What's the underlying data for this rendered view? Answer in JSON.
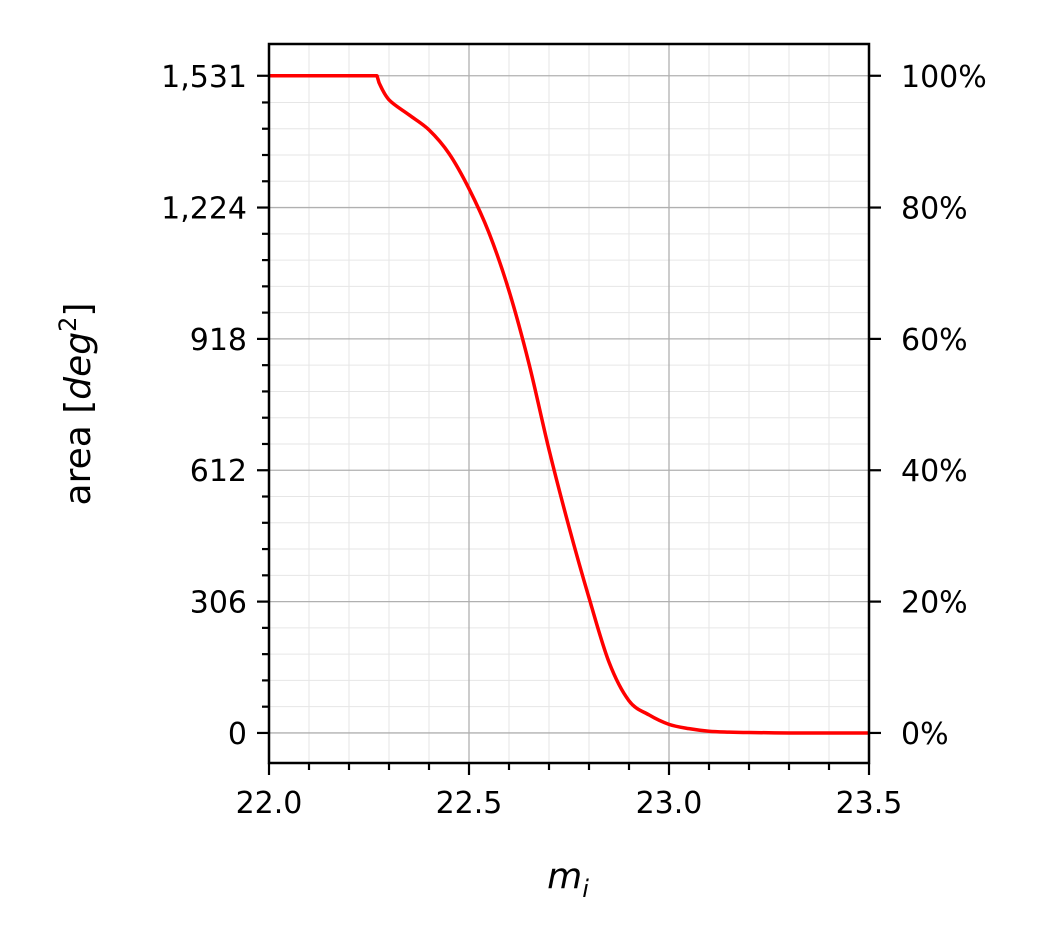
{
  "chart_data": {
    "type": "line",
    "title": "",
    "xlabel": "m",
    "xlabel_subscript": "i",
    "ylabel_prefix": "area [",
    "ylabel_italic": "deg",
    "ylabel_superscript": "2",
    "ylabel_suffix": "]",
    "xlim": [
      22.0,
      23.5
    ],
    "ylim": [
      -70,
      1605
    ],
    "x_ticks": [
      22.0,
      22.5,
      23.0,
      23.5
    ],
    "x_tick_labels": [
      "22.0",
      "22.5",
      "23.0",
      "23.5"
    ],
    "y_ticks": [
      0,
      306,
      612,
      918,
      1224,
      1531
    ],
    "y_tick_labels": [
      "0",
      "306",
      "612",
      "918",
      "1,224",
      "1,531"
    ],
    "y2_tick_labels": [
      "0%",
      "20%",
      "40%",
      "60%",
      "80%",
      "100%"
    ],
    "grid": true,
    "minor_grid": true,
    "series": [
      {
        "color": "#ff0000",
        "x": [
          22.0,
          22.1,
          22.2,
          22.27,
          22.275,
          22.3,
          22.35,
          22.4,
          22.45,
          22.5,
          22.55,
          22.6,
          22.65,
          22.7,
          22.75,
          22.8,
          22.85,
          22.9,
          22.95,
          23.0,
          23.05,
          23.1,
          23.15,
          23.2,
          23.3,
          23.4,
          23.5
        ],
        "y": [
          1531,
          1531,
          1531,
          1531,
          1515,
          1475,
          1440,
          1405,
          1350,
          1268,
          1165,
          1030,
          860,
          660,
          480,
          315,
          165,
          75,
          42,
          20,
          10,
          4,
          2,
          1,
          0,
          0,
          0
        ]
      }
    ]
  }
}
